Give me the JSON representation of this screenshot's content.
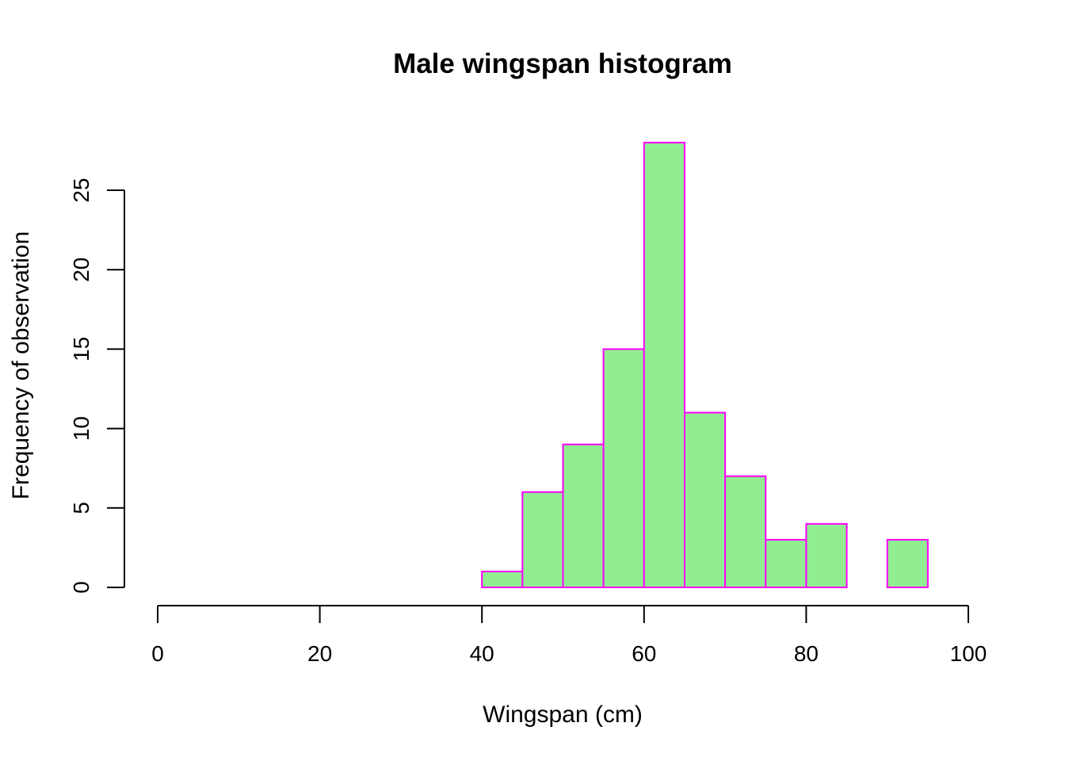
{
  "chart_data": {
    "type": "bar",
    "title": "Male wingspan histogram",
    "xlabel": "Wingspan (cm)",
    "ylabel": "Frequency of observation",
    "xlim": [
      0,
      100
    ],
    "ylim": [
      0,
      28
    ],
    "x_ticks": [
      "0",
      "20",
      "40",
      "60",
      "80",
      "100"
    ],
    "y_ticks": [
      "0",
      "5",
      "10",
      "15",
      "20",
      "25"
    ],
    "bins": [
      {
        "from": 40,
        "to": 45,
        "count": 1
      },
      {
        "from": 45,
        "to": 50,
        "count": 6
      },
      {
        "from": 50,
        "to": 55,
        "count": 9
      },
      {
        "from": 55,
        "to": 60,
        "count": 15
      },
      {
        "from": 60,
        "to": 65,
        "count": 28
      },
      {
        "from": 65,
        "to": 70,
        "count": 11
      },
      {
        "from": 70,
        "to": 75,
        "count": 7
      },
      {
        "from": 75,
        "to": 80,
        "count": 3
      },
      {
        "from": 80,
        "to": 85,
        "count": 4
      },
      {
        "from": 85,
        "to": 90,
        "count": 0
      },
      {
        "from": 90,
        "to": 95,
        "count": 3
      }
    ],
    "grid": false,
    "colors": {
      "bar_fill": "#90ee90",
      "bar_border": "#ff00ff"
    }
  }
}
